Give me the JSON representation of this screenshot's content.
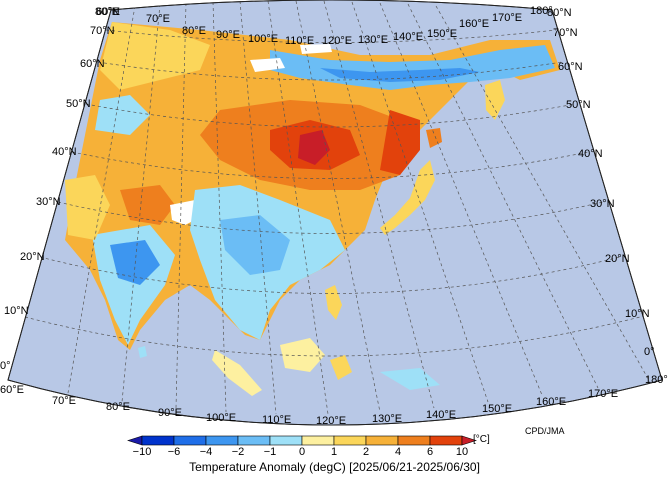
{
  "map": {
    "credit": "CPD/JMA",
    "lon_labels": [
      "60°E",
      "70°E",
      "80°E",
      "90°E",
      "100°E",
      "110°E",
      "120°E",
      "130°E",
      "140°E",
      "150°E",
      "160°E",
      "170°E",
      "180°"
    ],
    "lat_labels": [
      "0°",
      "10°N",
      "20°N",
      "30°N",
      "40°N",
      "50°N",
      "60°N",
      "70°N",
      "80°N"
    ],
    "colors": {
      "ocean": "#b8c8e6",
      "graticule": "#555555",
      "coast": "#1a1a1a"
    }
  },
  "colorbar": {
    "title": "Temperature Anomaly (degC) [2025/06/21-2025/06/30]",
    "unit": "[°C]",
    "ticks": [
      "−10",
      "−6",
      "−4",
      "−2",
      "−1",
      "0",
      "1",
      "2",
      "4",
      "6",
      "10"
    ],
    "colors": [
      "#0033cc",
      "#1f6ee8",
      "#3d96f0",
      "#6bbdf5",
      "#9ee0f7",
      "#fdf0a0",
      "#fbd65a",
      "#f6b138",
      "#ee7f1e",
      "#e2420c"
    ],
    "under_color": "#1a1aa8",
    "over_color": "#c81e28"
  }
}
